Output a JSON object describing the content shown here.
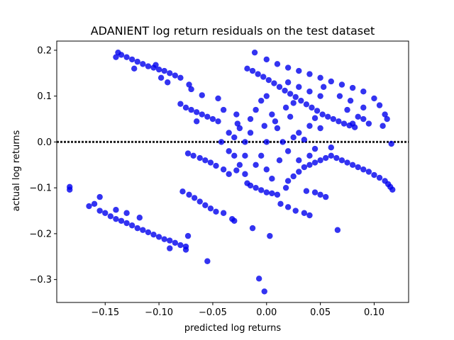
{
  "chart_data": {
    "type": "scatter",
    "title": "ADANIENT log return residuals on the test dataset",
    "xlabel": "predicted log returns",
    "ylabel": "actual log returns",
    "xlim": [
      -0.195,
      0.132
    ],
    "ylim": [
      -0.35,
      0.22
    ],
    "xticks": [
      -0.15,
      -0.1,
      -0.05,
      0.0,
      0.05,
      0.1
    ],
    "xtick_labels": [
      "−0.15",
      "−0.10",
      "−0.05",
      "0.00",
      "0.05",
      "0.10"
    ],
    "yticks": [
      -0.3,
      -0.2,
      -0.1,
      0.0,
      0.1,
      0.2
    ],
    "ytick_labels": [
      "−0.3",
      "−0.2",
      "−0.1",
      "0.0",
      "0.1",
      "0.2"
    ],
    "reference_line": {
      "y": 0.0,
      "style": "dotted",
      "color": "#222222"
    },
    "marker_color": "#0000ee",
    "grid": false,
    "legend": "none",
    "series": [
      {
        "values": [
          {
            "x": -0.138,
            "y": 0.195
          },
          {
            "x": -0.135,
            "y": 0.19
          },
          {
            "x": -0.13,
            "y": 0.185
          },
          {
            "x": -0.125,
            "y": 0.18
          },
          {
            "x": -0.12,
            "y": 0.175
          },
          {
            "x": -0.115,
            "y": 0.17
          },
          {
            "x": -0.11,
            "y": 0.165
          },
          {
            "x": -0.105,
            "y": 0.162
          },
          {
            "x": -0.1,
            "y": 0.158
          },
          {
            "x": -0.095,
            "y": 0.155
          },
          {
            "x": -0.09,
            "y": 0.15
          },
          {
            "x": -0.085,
            "y": 0.145
          },
          {
            "x": -0.08,
            "y": 0.14
          },
          {
            "x": -0.14,
            "y": 0.185
          },
          {
            "x": -0.123,
            "y": 0.16
          },
          {
            "x": -0.103,
            "y": 0.168
          },
          {
            "x": -0.098,
            "y": 0.14
          },
          {
            "x": -0.072,
            "y": 0.125
          },
          {
            "x": -0.07,
            "y": 0.115
          },
          {
            "x": -0.08,
            "y": 0.083
          },
          {
            "x": -0.075,
            "y": 0.075
          },
          {
            "x": -0.07,
            "y": 0.07
          },
          {
            "x": -0.065,
            "y": 0.065
          },
          {
            "x": -0.06,
            "y": 0.06
          },
          {
            "x": -0.055,
            "y": 0.055
          },
          {
            "x": -0.05,
            "y": 0.05
          },
          {
            "x": -0.045,
            "y": 0.045
          },
          {
            "x": -0.065,
            "y": 0.045
          },
          {
            "x": -0.04,
            "y": 0.07
          },
          {
            "x": -0.045,
            "y": 0.095
          },
          {
            "x": -0.06,
            "y": 0.102
          },
          {
            "x": -0.027,
            "y": 0.04
          },
          {
            "x": -0.092,
            "y": 0.13
          },
          {
            "x": -0.183,
            "y": -0.098
          },
          {
            "x": -0.183,
            "y": -0.104
          },
          {
            "x": -0.165,
            "y": -0.14
          },
          {
            "x": -0.16,
            "y": -0.135
          },
          {
            "x": -0.155,
            "y": -0.12
          },
          {
            "x": -0.155,
            "y": -0.15
          },
          {
            "x": -0.15,
            "y": -0.155
          },
          {
            "x": -0.145,
            "y": -0.162
          },
          {
            "x": -0.14,
            "y": -0.168
          },
          {
            "x": -0.135,
            "y": -0.172
          },
          {
            "x": -0.13,
            "y": -0.177
          },
          {
            "x": -0.125,
            "y": -0.182
          },
          {
            "x": -0.12,
            "y": -0.188
          },
          {
            "x": -0.115,
            "y": -0.192
          },
          {
            "x": -0.11,
            "y": -0.197
          },
          {
            "x": -0.105,
            "y": -0.202
          },
          {
            "x": -0.1,
            "y": -0.207
          },
          {
            "x": -0.095,
            "y": -0.212
          },
          {
            "x": -0.09,
            "y": -0.215
          },
          {
            "x": -0.085,
            "y": -0.22
          },
          {
            "x": -0.08,
            "y": -0.225
          },
          {
            "x": -0.075,
            "y": -0.228
          },
          {
            "x": -0.09,
            "y": -0.232
          },
          {
            "x": -0.075,
            "y": -0.235
          },
          {
            "x": -0.073,
            "y": -0.205
          },
          {
            "x": -0.14,
            "y": -0.148
          },
          {
            "x": -0.13,
            "y": -0.155
          },
          {
            "x": -0.118,
            "y": -0.165
          },
          {
            "x": -0.078,
            "y": -0.108
          },
          {
            "x": -0.072,
            "y": -0.115
          },
          {
            "x": -0.067,
            "y": -0.122
          },
          {
            "x": -0.062,
            "y": -0.13
          },
          {
            "x": -0.057,
            "y": -0.138
          },
          {
            "x": -0.052,
            "y": -0.145
          },
          {
            "x": -0.047,
            "y": -0.152
          },
          {
            "x": -0.04,
            "y": -0.155
          },
          {
            "x": -0.032,
            "y": -0.168
          },
          {
            "x": -0.03,
            "y": -0.172
          },
          {
            "x": -0.055,
            "y": -0.26
          },
          {
            "x": -0.013,
            "y": -0.188
          },
          {
            "x": 0.003,
            "y": -0.205
          },
          {
            "x": -0.007,
            "y": -0.298
          },
          {
            "x": -0.002,
            "y": -0.326
          },
          {
            "x": 0.013,
            "y": -0.135
          },
          {
            "x": 0.02,
            "y": -0.142
          },
          {
            "x": 0.027,
            "y": -0.15
          },
          {
            "x": 0.035,
            "y": -0.155
          },
          {
            "x": 0.04,
            "y": -0.16
          },
          {
            "x": 0.066,
            "y": -0.192
          },
          {
            "x": 0.045,
            "y": -0.11
          },
          {
            "x": 0.05,
            "y": -0.115
          },
          {
            "x": 0.055,
            "y": -0.12
          },
          {
            "x": 0.037,
            "y": -0.107
          },
          {
            "x": -0.073,
            "y": -0.025
          },
          {
            "x": -0.068,
            "y": -0.03
          },
          {
            "x": -0.062,
            "y": -0.035
          },
          {
            "x": -0.057,
            "y": -0.04
          },
          {
            "x": -0.052,
            "y": -0.045
          },
          {
            "x": -0.047,
            "y": -0.052
          },
          {
            "x": -0.04,
            "y": -0.06
          },
          {
            "x": -0.035,
            "y": -0.07
          },
          {
            "x": -0.028,
            "y": -0.062
          },
          {
            "x": -0.03,
            "y": -0.03
          },
          {
            "x": -0.025,
            "y": -0.05
          },
          {
            "x": -0.02,
            "y": -0.07
          },
          {
            "x": -0.018,
            "y": -0.09
          },
          {
            "x": -0.015,
            "y": -0.095
          },
          {
            "x": -0.01,
            "y": -0.1
          },
          {
            "x": -0.005,
            "y": -0.105
          },
          {
            "x": 0.0,
            "y": -0.11
          },
          {
            "x": 0.005,
            "y": -0.112
          },
          {
            "x": 0.01,
            "y": -0.115
          },
          {
            "x": 0.018,
            "y": -0.1
          },
          {
            "x": 0.02,
            "y": -0.085
          },
          {
            "x": 0.025,
            "y": -0.075
          },
          {
            "x": 0.03,
            "y": -0.065
          },
          {
            "x": 0.035,
            "y": -0.055
          },
          {
            "x": 0.04,
            "y": -0.05
          },
          {
            "x": 0.045,
            "y": -0.045
          },
          {
            "x": 0.05,
            "y": -0.04
          },
          {
            "x": 0.055,
            "y": -0.035
          },
          {
            "x": 0.06,
            "y": -0.03
          },
          {
            "x": 0.065,
            "y": -0.035
          },
          {
            "x": 0.07,
            "y": -0.04
          },
          {
            "x": 0.075,
            "y": -0.045
          },
          {
            "x": 0.08,
            "y": -0.05
          },
          {
            "x": 0.085,
            "y": -0.055
          },
          {
            "x": 0.09,
            "y": -0.06
          },
          {
            "x": 0.095,
            "y": -0.065
          },
          {
            "x": 0.1,
            "y": -0.072
          },
          {
            "x": 0.105,
            "y": -0.078
          },
          {
            "x": 0.11,
            "y": -0.085
          },
          {
            "x": 0.113,
            "y": -0.092
          },
          {
            "x": 0.115,
            "y": -0.098
          },
          {
            "x": 0.117,
            "y": -0.104
          },
          {
            "x": 0.045,
            "y": -0.015
          },
          {
            "x": 0.06,
            "y": -0.012
          },
          {
            "x": 0.116,
            "y": -0.004
          },
          {
            "x": 0.03,
            "y": -0.04
          },
          {
            "x": 0.04,
            "y": -0.03
          },
          {
            "x": -0.018,
            "y": 0.16
          },
          {
            "x": -0.013,
            "y": 0.155
          },
          {
            "x": -0.008,
            "y": 0.148
          },
          {
            "x": -0.003,
            "y": 0.142
          },
          {
            "x": 0.002,
            "y": 0.135
          },
          {
            "x": 0.007,
            "y": 0.128
          },
          {
            "x": 0.012,
            "y": 0.12
          },
          {
            "x": 0.017,
            "y": 0.112
          },
          {
            "x": 0.022,
            "y": 0.105
          },
          {
            "x": 0.027,
            "y": 0.098
          },
          {
            "x": 0.032,
            "y": 0.09
          },
          {
            "x": 0.037,
            "y": 0.082
          },
          {
            "x": 0.042,
            "y": 0.075
          },
          {
            "x": 0.047,
            "y": 0.068
          },
          {
            "x": 0.052,
            "y": 0.06
          },
          {
            "x": 0.057,
            "y": 0.055
          },
          {
            "x": 0.062,
            "y": 0.05
          },
          {
            "x": 0.067,
            "y": 0.045
          },
          {
            "x": 0.072,
            "y": 0.04
          },
          {
            "x": 0.077,
            "y": 0.036
          },
          {
            "x": 0.082,
            "y": 0.032
          },
          {
            "x": -0.011,
            "y": 0.195
          },
          {
            "x": 0.0,
            "y": 0.18
          },
          {
            "x": 0.01,
            "y": 0.17
          },
          {
            "x": 0.02,
            "y": 0.162
          },
          {
            "x": 0.03,
            "y": 0.155
          },
          {
            "x": 0.04,
            "y": 0.148
          },
          {
            "x": 0.05,
            "y": 0.14
          },
          {
            "x": 0.06,
            "y": 0.132
          },
          {
            "x": 0.07,
            "y": 0.125
          },
          {
            "x": 0.08,
            "y": 0.118
          },
          {
            "x": 0.09,
            "y": 0.11
          },
          {
            "x": 0.1,
            "y": 0.095
          },
          {
            "x": 0.105,
            "y": 0.08
          },
          {
            "x": 0.11,
            "y": 0.06
          },
          {
            "x": 0.112,
            "y": 0.05
          },
          {
            "x": 0.108,
            "y": 0.035
          },
          {
            "x": 0.095,
            "y": 0.04
          },
          {
            "x": 0.085,
            "y": 0.055
          },
          {
            "x": 0.075,
            "y": 0.07
          },
          {
            "x": 0.078,
            "y": 0.09
          },
          {
            "x": 0.068,
            "y": 0.1
          },
          {
            "x": 0.09,
            "y": 0.075
          },
          {
            "x": 0.08,
            "y": 0.04
          },
          {
            "x": 0.02,
            "y": 0.13
          },
          {
            "x": 0.03,
            "y": 0.12
          },
          {
            "x": 0.04,
            "y": 0.11
          },
          {
            "x": 0.05,
            "y": 0.1
          },
          {
            "x": 0.025,
            "y": 0.085
          },
          {
            "x": 0.045,
            "y": 0.052
          },
          {
            "x": 0.05,
            "y": 0.03
          },
          {
            "x": 0.04,
            "y": 0.035
          },
          {
            "x": 0.053,
            "y": 0.12
          },
          {
            "x": 0.09,
            "y": 0.05
          },
          {
            "x": -0.042,
            "y": 0.0
          },
          {
            "x": -0.035,
            "y": 0.02
          },
          {
            "x": -0.03,
            "y": 0.01
          },
          {
            "x": -0.025,
            "y": 0.03
          },
          {
            "x": -0.02,
            "y": 0.0
          },
          {
            "x": -0.015,
            "y": 0.05
          },
          {
            "x": -0.01,
            "y": 0.07
          },
          {
            "x": -0.005,
            "y": 0.09
          },
          {
            "x": 0.0,
            "y": 0.1
          },
          {
            "x": 0.005,
            "y": 0.06
          },
          {
            "x": 0.01,
            "y": 0.03
          },
          {
            "x": 0.015,
            "y": 0.0
          },
          {
            "x": 0.02,
            "y": -0.02
          },
          {
            "x": 0.025,
            "y": 0.01
          },
          {
            "x": 0.03,
            "y": 0.02
          },
          {
            "x": -0.02,
            "y": -0.03
          },
          {
            "x": -0.01,
            "y": -0.05
          },
          {
            "x": 0.0,
            "y": -0.06
          },
          {
            "x": 0.005,
            "y": -0.08
          },
          {
            "x": -0.005,
            "y": -0.03
          },
          {
            "x": 0.0,
            "y": 0.0
          },
          {
            "x": 0.008,
            "y": 0.045
          },
          {
            "x": -0.028,
            "y": 0.06
          },
          {
            "x": -0.035,
            "y": -0.02
          },
          {
            "x": 0.022,
            "y": 0.055
          },
          {
            "x": 0.012,
            "y": -0.04
          },
          {
            "x": -0.015,
            "y": 0.02
          },
          {
            "x": 0.018,
            "y": 0.075
          },
          {
            "x": 0.035,
            "y": 0.005
          },
          {
            "x": -0.002,
            "y": 0.035
          }
        ]
      }
    ]
  }
}
